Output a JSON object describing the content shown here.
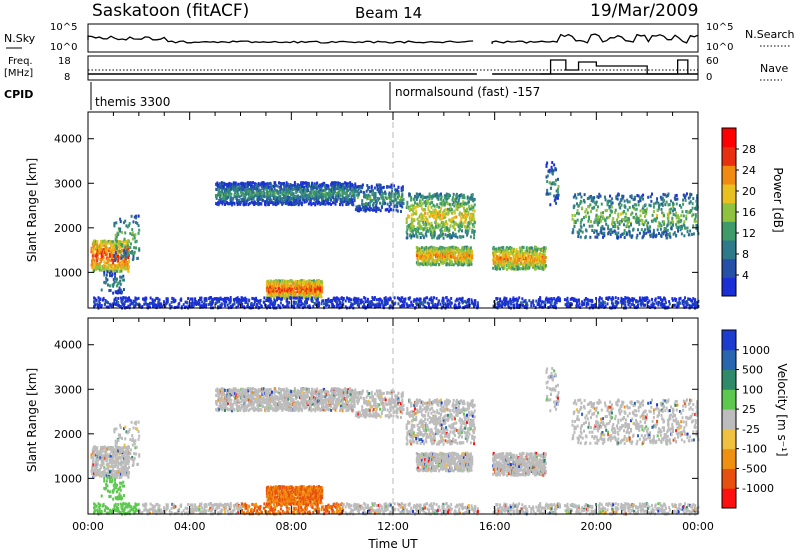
{
  "header": {
    "station": "Saskatoon (fitACF)",
    "beam": "Beam 14",
    "date": "19/Mar/2009"
  },
  "summary_panels": {
    "nsky_label": "N.Sky",
    "nsearch_label": "N.Search",
    "freq_label_1": "Freq.",
    "freq_label_2": "[MHz]",
    "nave_label": "Nave",
    "cpid_label": "CPID",
    "nsky_ticks": [
      "10^5",
      "10^0"
    ],
    "freq_ticks": [
      "18",
      "8"
    ],
    "nave_ticks": [
      "60",
      "0"
    ],
    "cpid_segments": [
      {
        "text": "themis 3300",
        "start_hour": 0
      },
      {
        "text": "normalsound (fast) -157",
        "start_hour": 12
      }
    ]
  },
  "colors": {
    "power_scale": [
      "#1a2fd6",
      "#2450a8",
      "#2e7a8a",
      "#3f9a6a",
      "#8fc23e",
      "#e8c020",
      "#f08a10",
      "#e83010",
      "#ff0000"
    ],
    "velocity_scale": [
      "#1c3ccf",
      "#2a66b0",
      "#2f8a6a",
      "#5cc84e",
      "#bcbcbc",
      "#f0c040",
      "#f09010",
      "#e85010",
      "#ff1010"
    ]
  },
  "chart_data": [
    {
      "type": "heatmap",
      "title": "Power",
      "xlabel": "Time UT",
      "ylabel": "Slant Range [km]",
      "xlim": [
        "00:00",
        "24:00"
      ],
      "ylim": [
        200,
        4600
      ],
      "x_ticks": [
        "00:00",
        "04:00",
        "08:00",
        "12:00",
        "16:00",
        "20:00",
        "00:00"
      ],
      "y_ticks": [
        1000,
        2000,
        3000,
        4000
      ],
      "colorbar": {
        "label": "Power [dB]",
        "ticks": [
          "4",
          "8",
          "12",
          "16",
          "20",
          "24",
          "28"
        ]
      },
      "data_gap_hours": [
        15.3,
        15.9
      ]
    },
    {
      "type": "heatmap",
      "title": "Velocity",
      "xlabel": "Time UT",
      "ylabel": "Slant Range [km]",
      "xlim": [
        "00:00",
        "24:00"
      ],
      "ylim": [
        200,
        4600
      ],
      "x_ticks": [
        "00:00",
        "04:00",
        "08:00",
        "12:00",
        "16:00",
        "20:00",
        "00:00"
      ],
      "y_ticks": [
        1000,
        2000,
        3000,
        4000
      ],
      "colorbar": {
        "label": "Velocity [m s⁻¹]",
        "ticks": [
          "1000",
          "500",
          "100",
          "25",
          "-25",
          "-100",
          "-500",
          "-1000"
        ]
      },
      "data_gap_hours": [
        15.3,
        15.9
      ]
    }
  ]
}
